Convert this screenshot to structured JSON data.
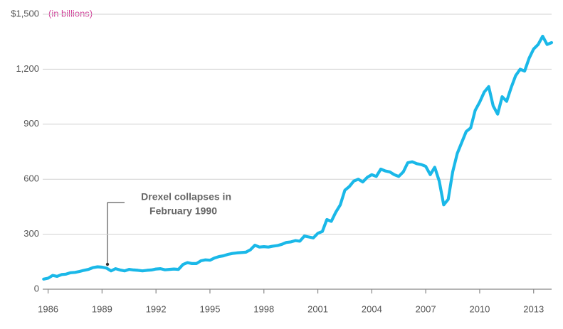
{
  "chart_data": {
    "type": "line",
    "y_label": "(in billions)",
    "annotation": [
      "Drexel collapses in",
      "February 1990"
    ],
    "xlim": [
      1985.7,
      2014.0
    ],
    "xticks": [
      1986,
      1989,
      1992,
      1995,
      1998,
      2001,
      2004,
      2007,
      2010,
      2013
    ],
    "ylim": [
      0,
      1500
    ],
    "yticks": [
      0,
      300,
      600,
      900,
      {
        "value": 1200,
        "label": "1,200"
      },
      {
        "value": 1500,
        "label": "$1,500"
      }
    ],
    "grid": true,
    "x": [
      1985.75,
      1986,
      1986.25,
      1986.5,
      1986.75,
      1987,
      1987.25,
      1987.5,
      1987.75,
      1988,
      1988.25,
      1988.5,
      1988.75,
      1989,
      1989.25,
      1989.5,
      1989.75,
      1990,
      1990.25,
      1990.5,
      1990.75,
      1991,
      1991.25,
      1991.5,
      1991.75,
      1992,
      1992.25,
      1992.5,
      1992.75,
      1993,
      1993.25,
      1993.5,
      1993.75,
      1994,
      1994.25,
      1994.5,
      1994.75,
      1995,
      1995.25,
      1995.5,
      1995.75,
      1996,
      1996.25,
      1996.5,
      1996.75,
      1997,
      1997.25,
      1997.5,
      1997.75,
      1998,
      1998.25,
      1998.5,
      1998.75,
      1999,
      1999.25,
      1999.5,
      1999.75,
      2000,
      2000.25,
      2000.5,
      2000.75,
      2001,
      2001.25,
      2001.5,
      2001.75,
      2002,
      2002.25,
      2002.5,
      2002.75,
      2003,
      2003.25,
      2003.5,
      2003.75,
      2004,
      2004.25,
      2004.5,
      2004.75,
      2005,
      2005.25,
      2005.5,
      2005.75,
      2006,
      2006.25,
      2006.5,
      2006.75,
      2007,
      2007.25,
      2007.5,
      2007.75,
      2008,
      2008.25,
      2008.5,
      2008.75,
      2009,
      2009.25,
      2009.5,
      2009.75,
      2010,
      2010.25,
      2010.5,
      2010.75,
      2011,
      2011.25,
      2011.5,
      2011.75,
      2012,
      2012.25,
      2012.5,
      2012.75,
      2013,
      2013.25,
      2013.5,
      2013.75,
      2014
    ],
    "series": [
      {
        "color": "#1ab8e8",
        "values": [
          55,
          60,
          75,
          70,
          80,
          82,
          90,
          92,
          97,
          103,
          108,
          118,
          122,
          120,
          115,
          100,
          112,
          105,
          100,
          108,
          105,
          103,
          100,
          103,
          105,
          110,
          112,
          106,
          108,
          110,
          108,
          135,
          145,
          140,
          140,
          155,
          160,
          158,
          170,
          178,
          182,
          190,
          195,
          198,
          200,
          202,
          215,
          240,
          230,
          232,
          230,
          235,
          238,
          245,
          255,
          258,
          265,
          262,
          290,
          285,
          280,
          305,
          315,
          380,
          370,
          420,
          460,
          540,
          560,
          590,
          600,
          585,
          610,
          625,
          615,
          655,
          645,
          640,
          625,
          615,
          640,
          690,
          695,
          685,
          680,
          670,
          625,
          665,
          590,
          460,
          490,
          640,
          740,
          800,
          860,
          880,
          975,
          1020,
          1075,
          1105,
          1000,
          955,
          1050,
          1025,
          1100,
          1165,
          1200,
          1190,
          1260,
          1310,
          1335,
          1380,
          1335,
          1345
        ]
      }
    ]
  }
}
